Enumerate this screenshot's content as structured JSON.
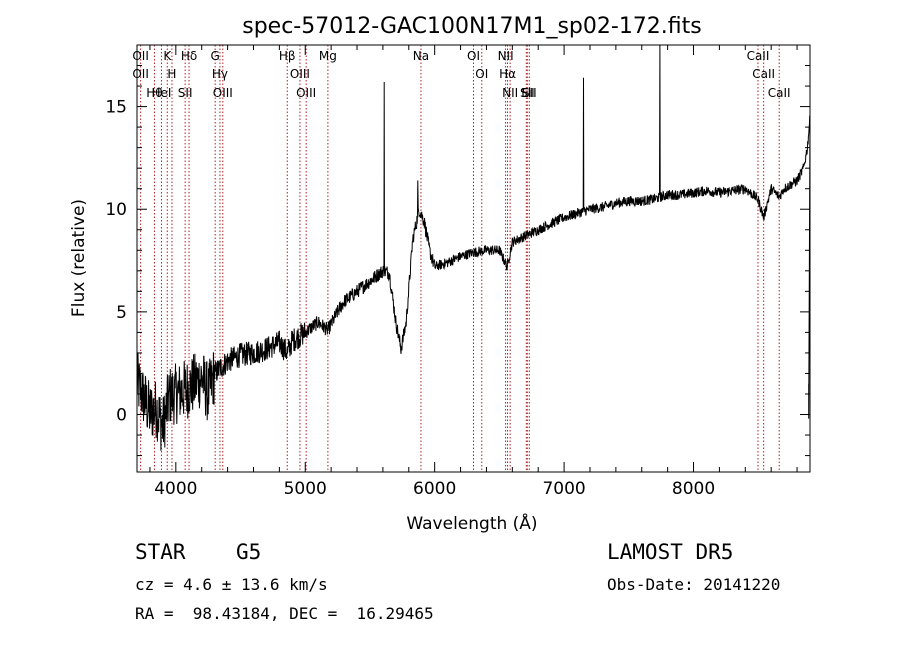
{
  "chart_data": {
    "type": "line",
    "title": "spec-57012-GAC100N17M1_sp02-172.fits",
    "xlabel": "Wavelength (Å)",
    "ylabel": "Flux (relative)",
    "xlim": [
      3700,
      8900
    ],
    "ylim": [
      -2.8,
      18.0
    ],
    "xticks": [
      4000,
      5000,
      6000,
      7000,
      8000
    ],
    "yticks": [
      0,
      5,
      10,
      15
    ],
    "grid": false,
    "spectrum_knots": [
      [
        3700,
        1.6
      ],
      [
        3800,
        0.1
      ],
      [
        3850,
        0.3
      ],
      [
        3900,
        -0.6
      ],
      [
        3950,
        0.9
      ],
      [
        4000,
        1.0
      ],
      [
        4100,
        1.3
      ],
      [
        4200,
        1.8
      ],
      [
        4250,
        1.0
      ],
      [
        4300,
        2.0
      ],
      [
        4400,
        2.6
      ],
      [
        4500,
        2.9
      ],
      [
        4600,
        3.0
      ],
      [
        4700,
        3.2
      ],
      [
        4800,
        3.5
      ],
      [
        4862,
        3.0
      ],
      [
        4900,
        3.6
      ],
      [
        5000,
        4.0
      ],
      [
        5100,
        4.5
      ],
      [
        5175,
        4.1
      ],
      [
        5250,
        5.0
      ],
      [
        5300,
        5.5
      ],
      [
        5400,
        6.0
      ],
      [
        5500,
        6.5
      ],
      [
        5600,
        7.0
      ],
      [
        5650,
        6.9
      ],
      [
        5700,
        4.5
      ],
      [
        5740,
        3.2
      ],
      [
        5780,
        4.5
      ],
      [
        5830,
        8.5
      ],
      [
        5880,
        10.0
      ],
      [
        5920,
        9.4
      ],
      [
        5960,
        8.0
      ],
      [
        6000,
        7.2
      ],
      [
        6100,
        7.4
      ],
      [
        6200,
        7.7
      ],
      [
        6300,
        7.9
      ],
      [
        6400,
        8.0
      ],
      [
        6500,
        8.0
      ],
      [
        6560,
        7.2
      ],
      [
        6600,
        8.4
      ],
      [
        6700,
        8.7
      ],
      [
        6800,
        9.0
      ],
      [
        6900,
        9.3
      ],
      [
        7000,
        9.6
      ],
      [
        7100,
        9.8
      ],
      [
        7200,
        10.0
      ],
      [
        7300,
        10.1
      ],
      [
        7400,
        10.3
      ],
      [
        7500,
        10.4
      ],
      [
        7600,
        10.4
      ],
      [
        7700,
        10.5
      ],
      [
        7800,
        10.7
      ],
      [
        7900,
        10.7
      ],
      [
        8000,
        10.8
      ],
      [
        8100,
        10.9
      ],
      [
        8200,
        10.8
      ],
      [
        8300,
        10.9
      ],
      [
        8400,
        11.0
      ],
      [
        8498,
        10.5
      ],
      [
        8542,
        9.6
      ],
      [
        8600,
        11.0
      ],
      [
        8662,
        10.6
      ],
      [
        8700,
        11.0
      ],
      [
        8800,
        11.4
      ],
      [
        8850,
        12.0
      ],
      [
        8880,
        13.0
      ],
      [
        8900,
        14.5
      ]
    ],
    "emission_spikes": [
      {
        "x": 5610,
        "y": 16.2
      },
      {
        "x": 5870,
        "y": 11.4
      },
      {
        "x": 7150,
        "y": 16.4
      },
      {
        "x": 7740,
        "y": 18.0
      }
    ],
    "line_markers": [
      {
        "x": 3728,
        "labels": [
          "OII",
          "OII"
        ]
      },
      {
        "x": 3835,
        "labels": [
          "Hθ"
        ]
      },
      {
        "x": 3889,
        "labels": [
          "HeI"
        ]
      },
      {
        "x": 3934,
        "labels": [
          "K"
        ]
      },
      {
        "x": 3970,
        "labels": [
          "H"
        ]
      },
      {
        "x": 4072,
        "labels": [
          "SII"
        ]
      },
      {
        "x": 4102,
        "labels": [
          "Hδ"
        ]
      },
      {
        "x": 4304,
        "labels": [
          "G"
        ]
      },
      {
        "x": 4341,
        "labels": [
          "Hγ"
        ]
      },
      {
        "x": 4363,
        "labels": [
          "OIII"
        ]
      },
      {
        "x": 4861,
        "labels": [
          "Hβ"
        ]
      },
      {
        "x": 4959,
        "labels": [
          "OIII"
        ]
      },
      {
        "x": 5007,
        "labels": [
          "OIII"
        ]
      },
      {
        "x": 5175,
        "labels": [
          "Mg"
        ]
      },
      {
        "x": 5894,
        "labels": [
          "Na"
        ]
      },
      {
        "x": 6300,
        "labels": [
          "OI"
        ]
      },
      {
        "x": 6364,
        "labels": [
          "OI"
        ]
      },
      {
        "x": 6548,
        "labels": [
          "NII"
        ]
      },
      {
        "x": 6563,
        "labels": [
          "Hα"
        ]
      },
      {
        "x": 6583,
        "labels": [
          "NII"
        ]
      },
      {
        "x": 6708,
        "labels": [
          "Li"
        ]
      },
      {
        "x": 6716,
        "labels": [
          "SII"
        ]
      },
      {
        "x": 6731,
        "labels": [
          "SII"
        ]
      },
      {
        "x": 8498,
        "labels": [
          "CaII"
        ]
      },
      {
        "x": 8542,
        "labels": [
          "CaII"
        ]
      },
      {
        "x": 8662,
        "labels": [
          "CaII"
        ]
      }
    ]
  },
  "info": {
    "object_class": "STAR",
    "subclass": "G5",
    "redshift_text": "cz = 4.6 ± 13.6 km/s",
    "coords_text": "RA =  98.43184, DEC =  16.29465",
    "survey": "LAMOST DR5",
    "obs_date": "Obs-Date: 20141220"
  },
  "colors": {
    "spectrum": "#000000",
    "marker_lines": "#b22222",
    "axes": "#000000"
  }
}
